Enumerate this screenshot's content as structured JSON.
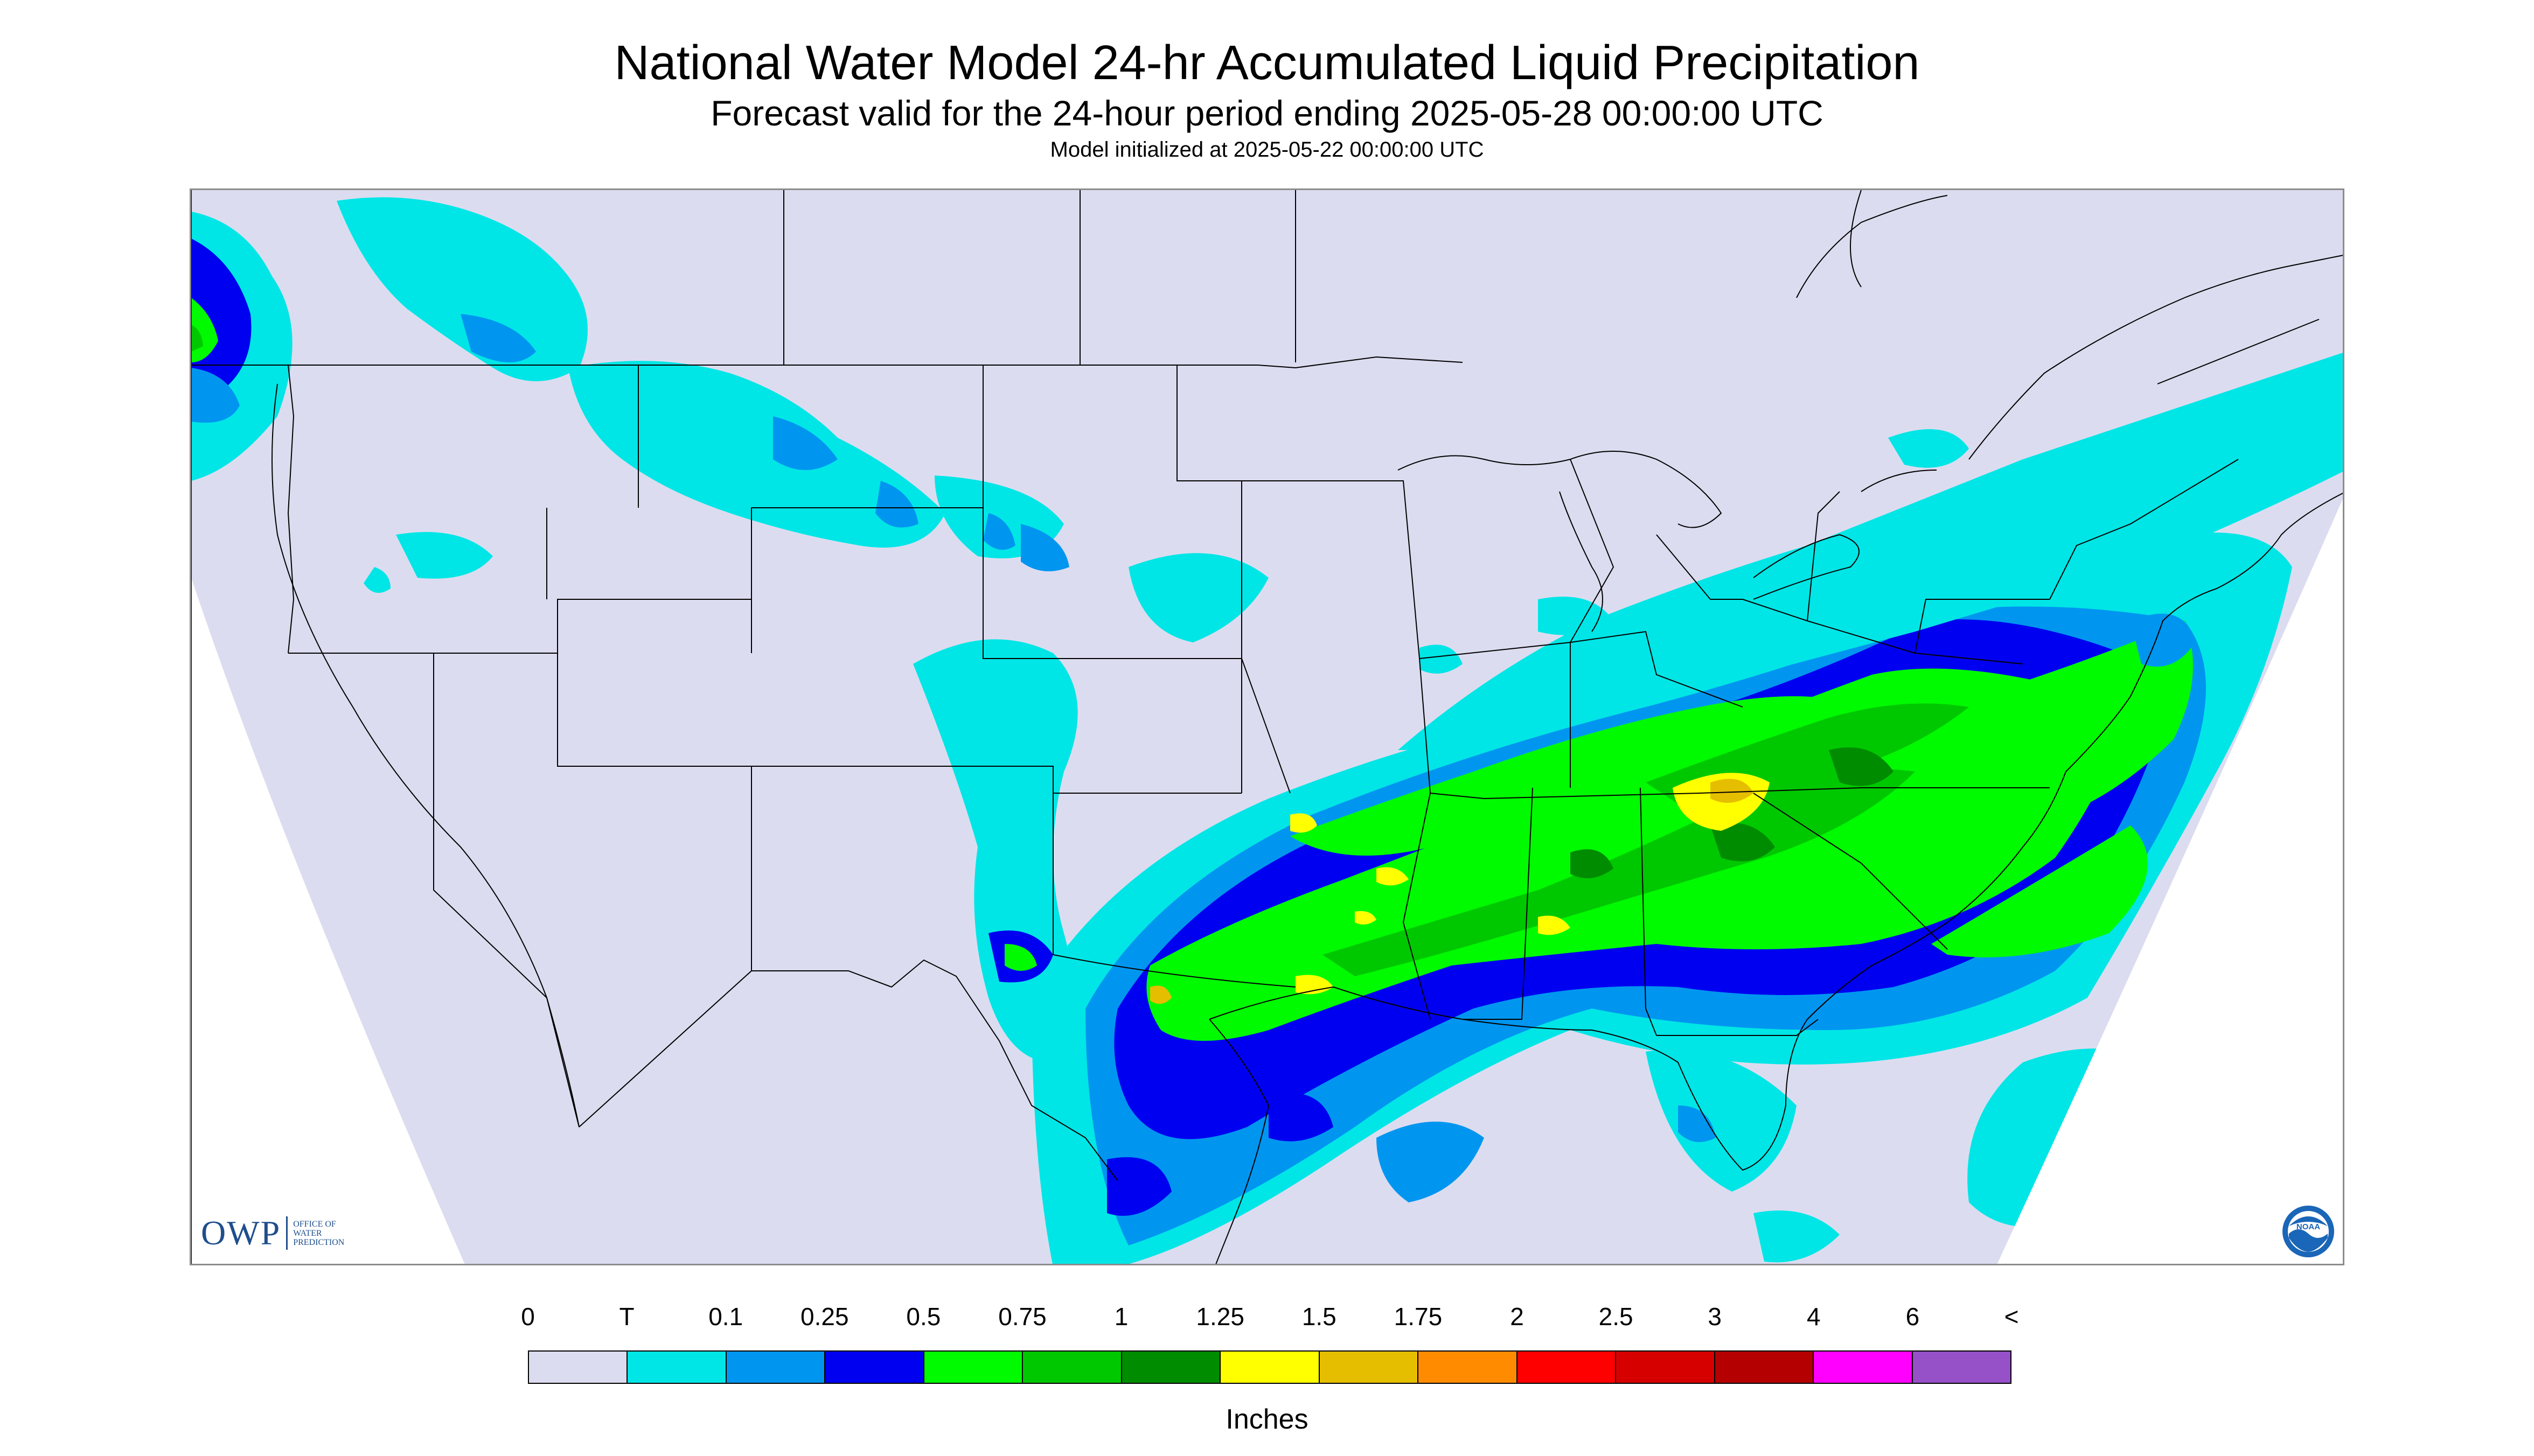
{
  "title": "National Water Model 24-hr Accumulated Liquid Precipitation",
  "subtitle": "Forecast valid for the 24-hour period ending 2025-05-28 00:00:00 UTC",
  "init_line": "Model initialized at 2025-05-22 00:00:00 UTC",
  "logos": {
    "owp_text": "OWP",
    "owp_sub": [
      "OFFICE OF",
      "WATER",
      "PREDICTION"
    ],
    "noaa_text": "NOAA"
  },
  "legend": {
    "labels": [
      "0",
      "T",
      "0.1",
      "0.25",
      "0.5",
      "0.75",
      "1",
      "1.25",
      "1.5",
      "1.75",
      "2",
      "2.5",
      "3",
      "4",
      "6",
      "<"
    ],
    "colors": [
      "#dcdcf0",
      "#00e6e6",
      "#0096f0",
      "#0000f0",
      "#00fa00",
      "#00c800",
      "#008c00",
      "#ffff00",
      "#e6be00",
      "#ff8c00",
      "#ff0000",
      "#d70000",
      "#b40000",
      "#ff00ff",
      "#9650c8"
    ],
    "units": "Inches"
  },
  "map": {
    "background_color": "#dcdcf0",
    "outside_domain_color": "#ffffff",
    "boundary_color": "#000000"
  }
}
